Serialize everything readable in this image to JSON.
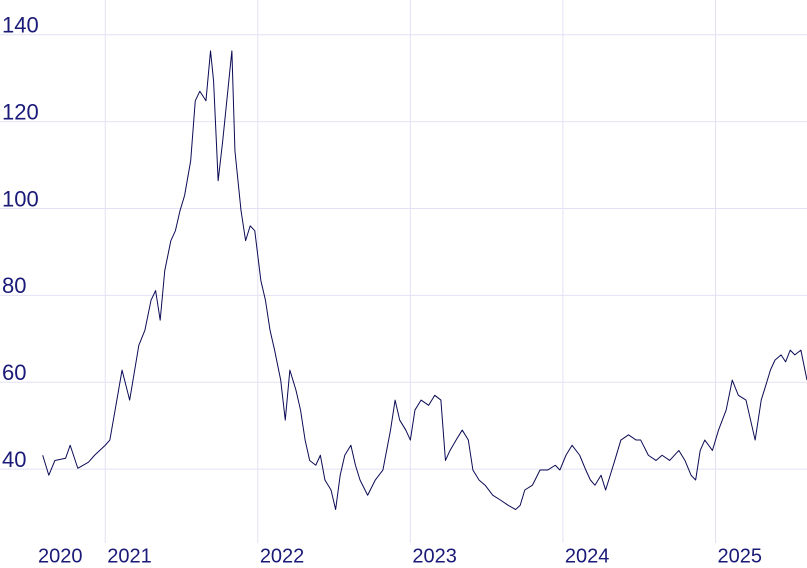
{
  "chart_data": {
    "type": "line",
    "color": "#0b0b55",
    "grid": true,
    "xlim": [
      2020.31,
      2025.6
    ],
    "ylim": [
      23,
      148
    ],
    "xticks": [
      2020,
      2021,
      2022,
      2023,
      2024,
      2025
    ],
    "yticks": [
      40,
      60,
      80,
      100,
      120,
      140
    ],
    "x": [
      2020.59,
      2020.63,
      2020.67,
      2020.74,
      2020.77,
      2020.82,
      2020.89,
      2020.93,
      2021.0,
      2021.03,
      2021.07,
      2021.11,
      2021.16,
      2021.22,
      2021.26,
      2021.3,
      2021.33,
      2021.36,
      2021.39,
      2021.43,
      2021.46,
      2021.49,
      2021.52,
      2021.56,
      2021.59,
      2021.62,
      2021.66,
      2021.69,
      2021.71,
      2021.74,
      2021.77,
      2021.81,
      2021.83,
      2021.85,
      2021.89,
      2021.92,
      2021.95,
      2021.98,
      2022.02,
      2022.05,
      2022.08,
      2022.11,
      2022.15,
      2022.18,
      2022.21,
      2022.25,
      2022.28,
      2022.31,
      2022.34,
      2022.38,
      2022.41,
      2022.44,
      2022.48,
      2022.51,
      2022.54,
      2022.57,
      2022.61,
      2022.64,
      2022.67,
      2022.72,
      2022.77,
      2022.82,
      2022.87,
      2022.9,
      2022.93,
      2022.97,
      2023.0,
      2023.03,
      2023.07,
      2023.12,
      2023.16,
      2023.2,
      2023.23,
      2023.26,
      2023.3,
      2023.34,
      2023.38,
      2023.41,
      2023.45,
      2023.49,
      2023.54,
      2023.59,
      2023.64,
      2023.69,
      2023.72,
      2023.75,
      2023.8,
      2023.85,
      2023.9,
      2023.95,
      2023.98,
      2024.02,
      2024.06,
      2024.11,
      2024.15,
      2024.18,
      2024.21,
      2024.25,
      2024.28,
      2024.31,
      2024.34,
      2024.38,
      2024.43,
      2024.48,
      2024.51,
      2024.56,
      2024.61,
      2024.65,
      2024.7,
      2024.76,
      2024.8,
      2024.84,
      2024.87,
      2024.9,
      2024.93,
      2024.98,
      2025.02,
      2025.07,
      2025.11,
      2025.15,
      2025.2,
      2025.23,
      2025.26,
      2025.3,
      2025.33,
      2025.36,
      2025.39,
      2025.43,
      2025.46,
      2025.49,
      2025.52,
      2025.56,
      2025.6
    ],
    "values": [
      43.2,
      38.6,
      42,
      42.5,
      45.5,
      40.2,
      41.6,
      43.2,
      45.5,
      46.7,
      54.7,
      62.8,
      55.9,
      68.5,
      72,
      78.9,
      81.1,
      74.3,
      85.7,
      92.6,
      94.9,
      99.5,
      103,
      111,
      124.8,
      127,
      124.8,
      136.3,
      129.4,
      106.4,
      115.6,
      129.4,
      136.3,
      113.3,
      99.5,
      92.6,
      96,
      94.9,
      83.4,
      78.9,
      72,
      67.4,
      60.5,
      51.3,
      62.8,
      58.2,
      53.6,
      46.7,
      42,
      40.9,
      43.2,
      37.5,
      35.2,
      30.7,
      38.6,
      43.2,
      45.5,
      40.9,
      37.5,
      34,
      37.5,
      39.8,
      49,
      55.9,
      51.3,
      49,
      46.7,
      53.6,
      55.9,
      54.7,
      57,
      55.9,
      42,
      44.3,
      46.7,
      49,
      46.7,
      39.8,
      37.5,
      36.3,
      34,
      32.9,
      31.7,
      30.7,
      31.7,
      35.2,
      36.3,
      39.8,
      39.8,
      40.9,
      39.8,
      43.2,
      45.5,
      43.2,
      39.8,
      37.5,
      36.3,
      38.6,
      35.2,
      38.6,
      42,
      46.7,
      47.9,
      46.7,
      46.7,
      43.2,
      42,
      43.2,
      42,
      44.3,
      42,
      38.6,
      37.5,
      44.3,
      46.7,
      44.3,
      49,
      53.6,
      60.5,
      57,
      55.9,
      51.3,
      46.7,
      55.9,
      59.3,
      62.8,
      65.1,
      66.3,
      64.7,
      67.4,
      66.3,
      67.4,
      60.5
    ]
  }
}
